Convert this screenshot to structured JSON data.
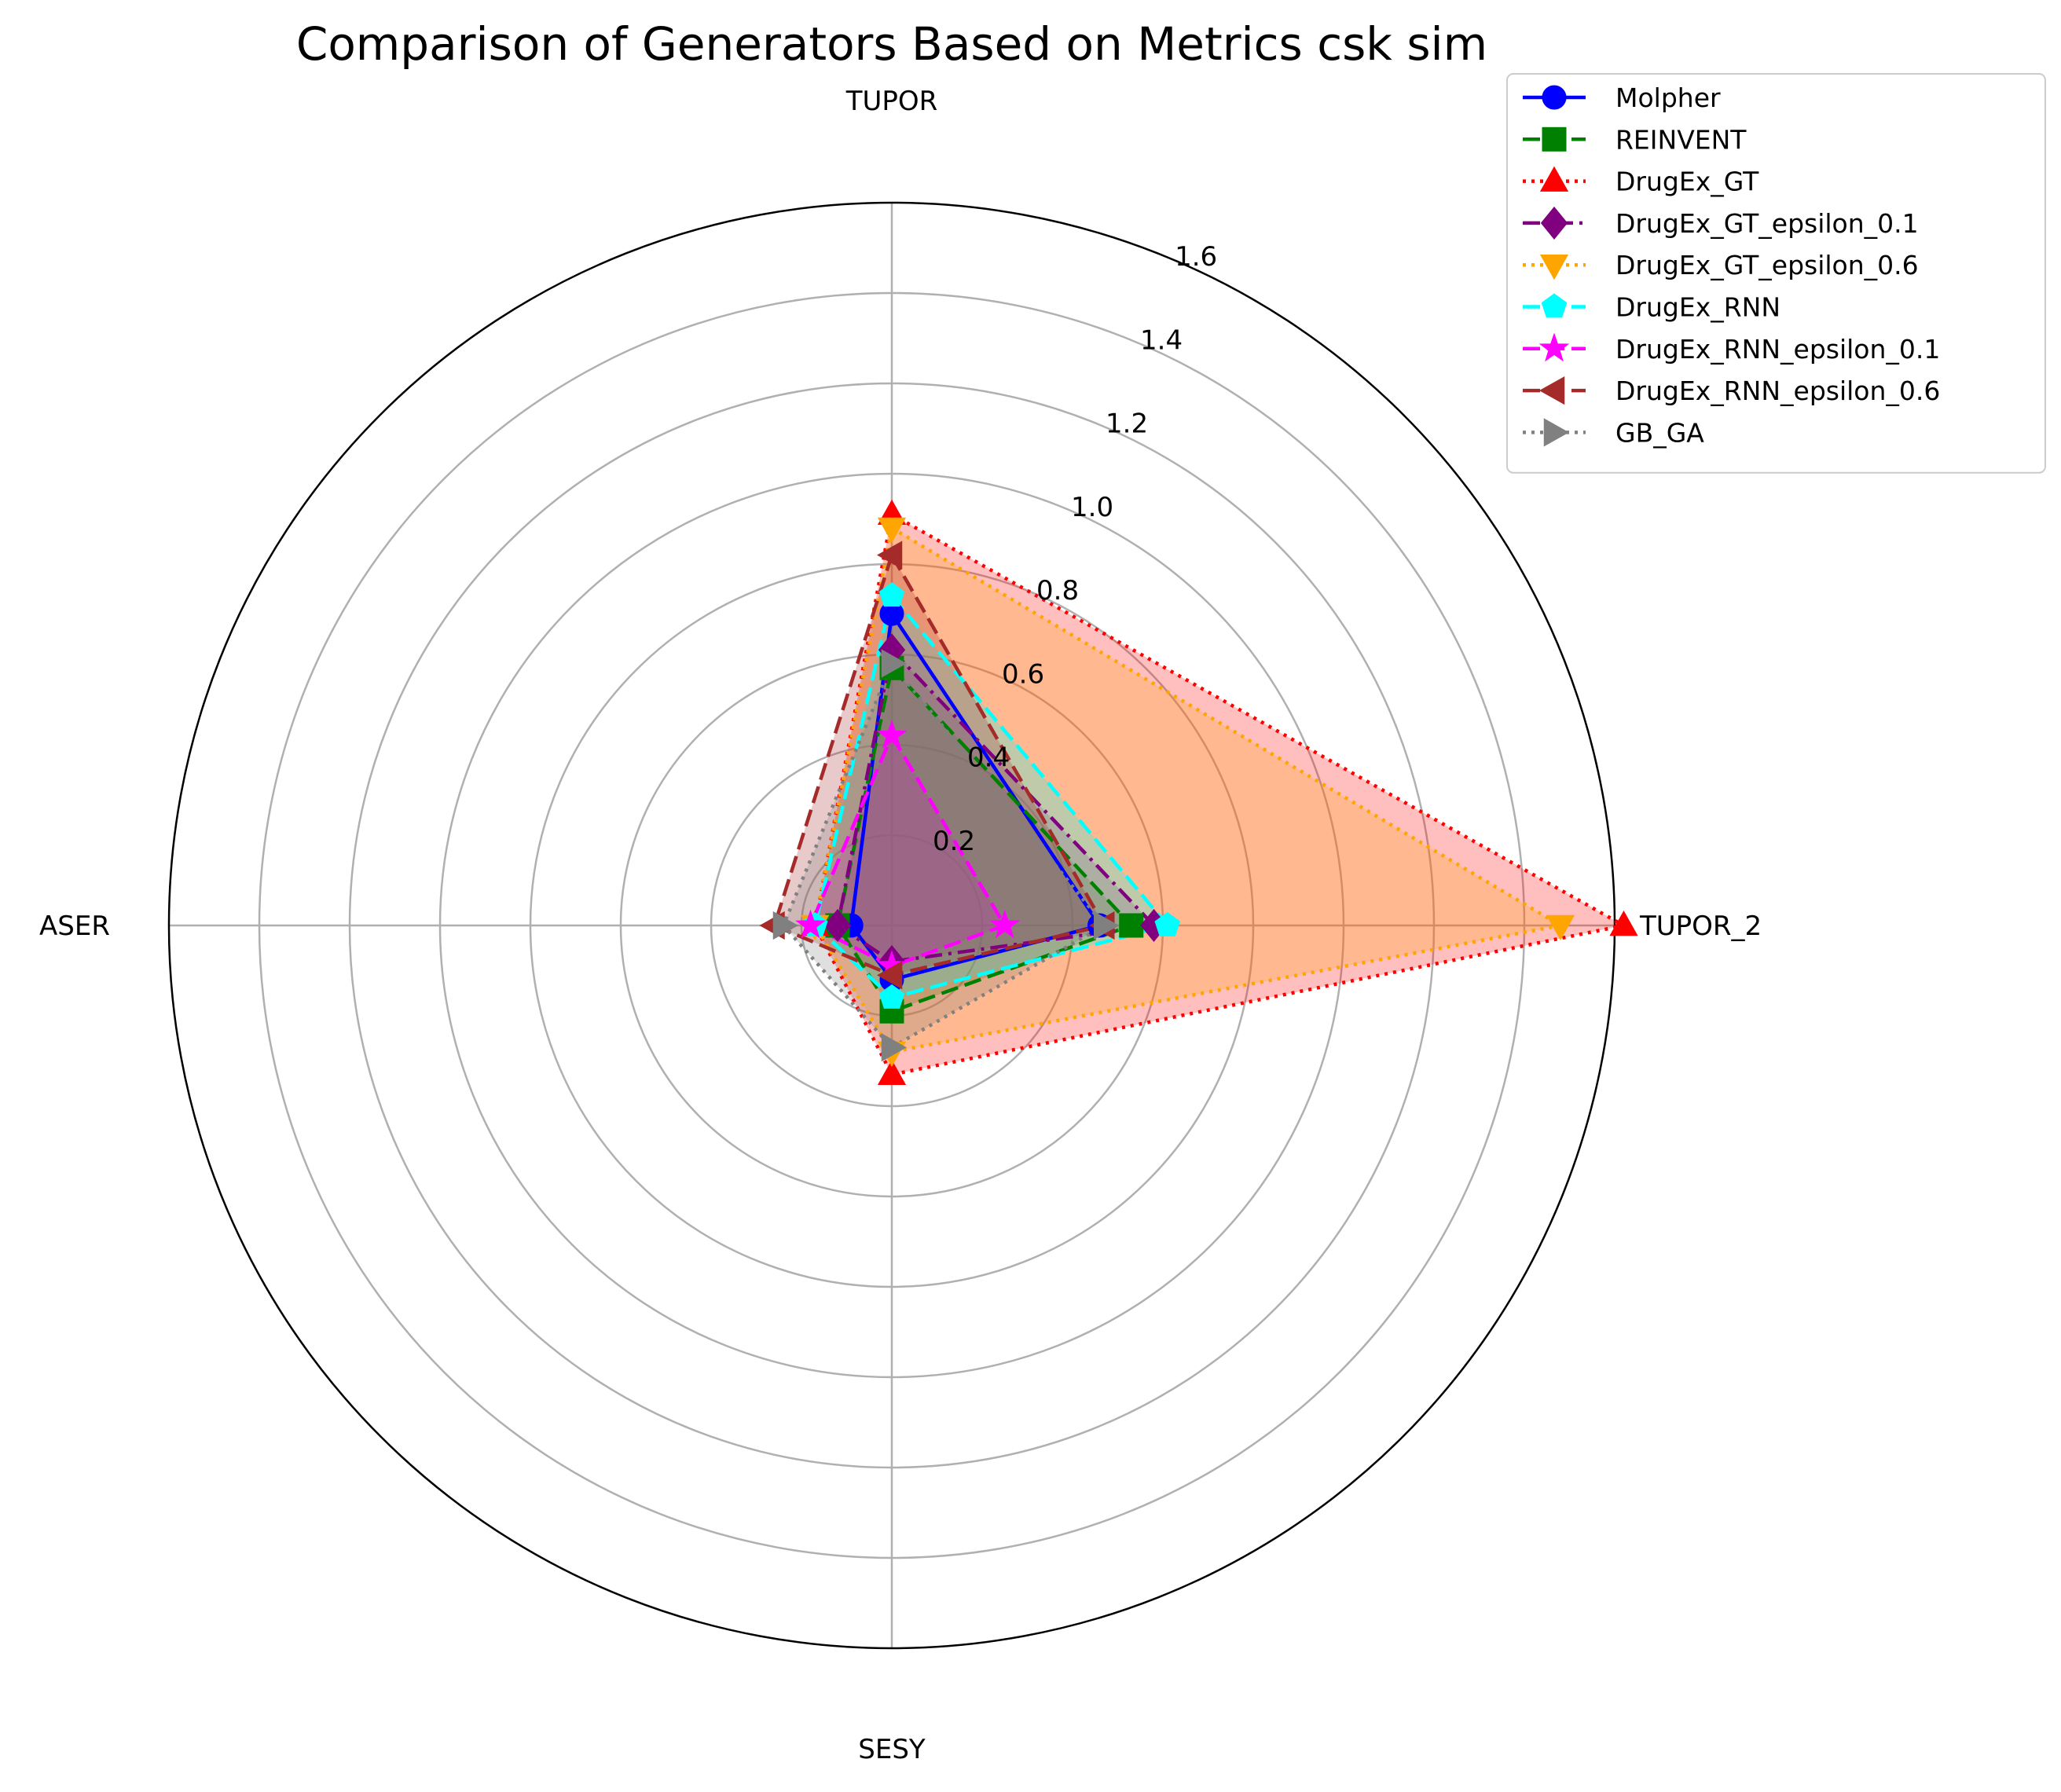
{
  "chart_data": {
    "type": "radar",
    "title": "Comparison of Generators Based on Metrics csk sim",
    "axes": [
      "TUPOR",
      "TUPOR_2",
      "SESY",
      "ASER"
    ],
    "rlim": [
      0,
      1.6
    ],
    "r_ticks": [
      "0.2",
      "0.4",
      "0.6",
      "0.8",
      "1.0",
      "1.2",
      "1.4",
      "1.6"
    ],
    "grid": true,
    "legend_position": "top-right",
    "series": [
      {
        "name": "Molpher",
        "values": [
          0.69,
          0.46,
          0.12,
          0.09
        ],
        "color": "#0000ff",
        "marker": "circle",
        "line": "solid"
      },
      {
        "name": "REINVENT",
        "values": [
          0.57,
          0.53,
          0.19,
          0.12
        ],
        "color": "#008000",
        "marker": "square",
        "line": "dashed"
      },
      {
        "name": "DrugEx_GT",
        "values": [
          0.91,
          1.62,
          0.33,
          0.17
        ],
        "color": "#ff0000",
        "marker": "triangle-up",
        "line": "dotted"
      },
      {
        "name": "DrugEx_GT_epsilon_0.1",
        "values": [
          0.61,
          0.58,
          0.08,
          0.12
        ],
        "color": "#800080",
        "marker": "diamond",
        "line": "dashdot"
      },
      {
        "name": "DrugEx_GT_epsilon_0.6",
        "values": [
          0.88,
          1.48,
          0.28,
          0.17
        ],
        "color": "#ffa500",
        "marker": "triangle-down",
        "line": "dotted"
      },
      {
        "name": "DrugEx_RNN",
        "values": [
          0.73,
          0.61,
          0.16,
          0.17
        ],
        "color": "#00ffff",
        "marker": "pentagon",
        "line": "dashed"
      },
      {
        "name": "DrugEx_RNN_epsilon_0.1",
        "values": [
          0.42,
          0.25,
          0.09,
          0.18
        ],
        "color": "#ff00ff",
        "marker": "star",
        "line": "dashed"
      },
      {
        "name": "DrugEx_RNN_epsilon_0.6",
        "values": [
          0.82,
          0.47,
          0.11,
          0.26
        ],
        "color": "#a52a2a",
        "marker": "triangle-left",
        "line": "dashed"
      },
      {
        "name": "GB_GA",
        "values": [
          0.58,
          0.47,
          0.27,
          0.24
        ],
        "color": "#808080",
        "marker": "triangle-right",
        "line": "dotted"
      }
    ]
  }
}
